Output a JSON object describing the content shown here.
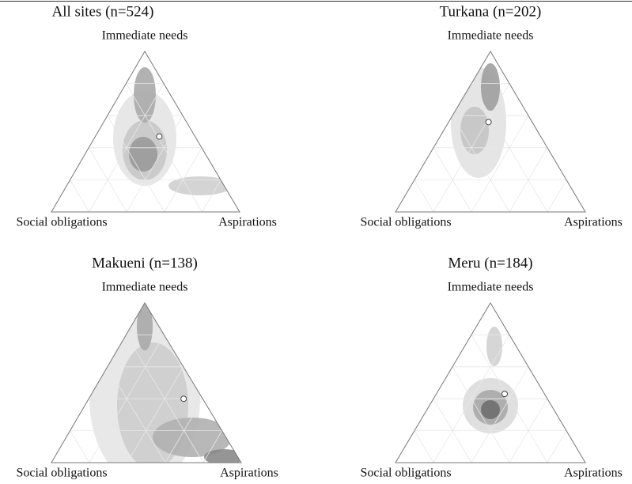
{
  "chart_data": [
    {
      "type": "ternary",
      "title": "All sites (n=524)",
      "vertex_labels": [
        "Immediate needs",
        "Social obligations",
        "Aspirations"
      ],
      "mean": [
        0.47,
        0.19,
        0.34
      ]
    },
    {
      "type": "ternary",
      "title": "Turkana (n=202)",
      "vertex_labels": [
        "Immediate needs",
        "Social obligations",
        "Aspirations"
      ],
      "mean": [
        0.56,
        0.23,
        0.21
      ]
    },
    {
      "type": "ternary",
      "title": "Makueni (n=138)",
      "vertex_labels": [
        "Immediate needs",
        "Social obligations",
        "Aspirations"
      ],
      "mean": [
        0.4,
        0.1,
        0.5
      ]
    },
    {
      "type": "ternary",
      "title": "Meru (n=184)",
      "vertex_labels": [
        "Immediate needs",
        "Social obligations",
        "Aspirations"
      ],
      "mean": [
        0.43,
        0.21,
        0.36
      ]
    }
  ]
}
